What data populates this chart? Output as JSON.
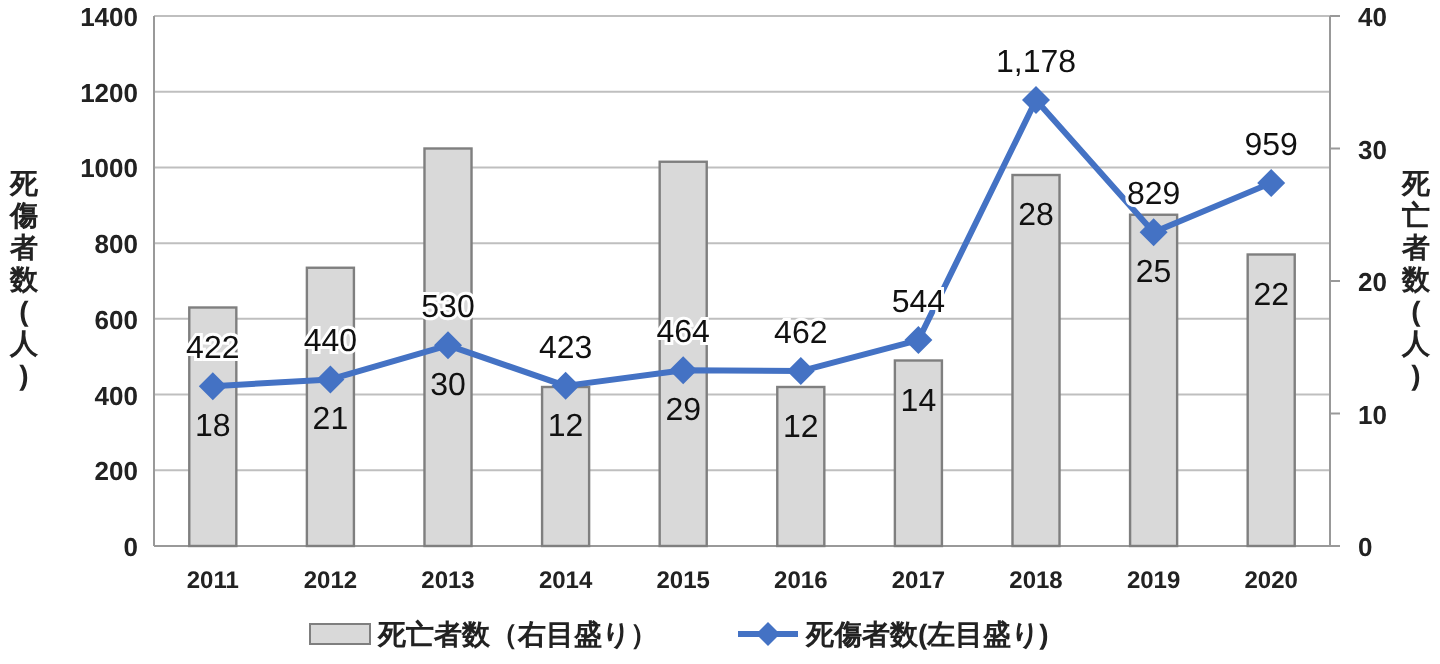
{
  "chart_data": {
    "type": "bar",
    "categories": [
      "2011",
      "2012",
      "2013",
      "2014",
      "2015",
      "2016",
      "2017",
      "2018",
      "2019",
      "2020"
    ],
    "ylabel": "死傷者数(人)",
    "y2label": "死亡者数(人)",
    "series": [
      {
        "name": "死亡者数（右目盛り）",
        "axis": "y2",
        "color": "#d9d9d9",
        "values": [
          18,
          21,
          30,
          12,
          29,
          12,
          14,
          28,
          25,
          22
        ]
      },
      {
        "name": "死傷者数(左目盛り)",
        "type": "line",
        "color": "#4472c4",
        "marker": "diamond",
        "values": [
          422,
          440,
          530,
          423,
          464,
          462,
          544,
          1178,
          829,
          959
        ],
        "value_labels": [
          "422",
          "440",
          "530",
          "423",
          "464",
          "462",
          "544",
          "1,178",
          "829",
          "959"
        ]
      }
    ],
    "data_labels": true,
    "ylim": [
      0,
      1400
    ],
    "yticks": [
      0,
      200,
      400,
      600,
      800,
      1000,
      1200,
      1400
    ],
    "y2lim": [
      0,
      40
    ],
    "y2ticks": [
      0,
      10,
      20,
      30,
      40
    ],
    "grid": "y",
    "legend": "bottom"
  }
}
